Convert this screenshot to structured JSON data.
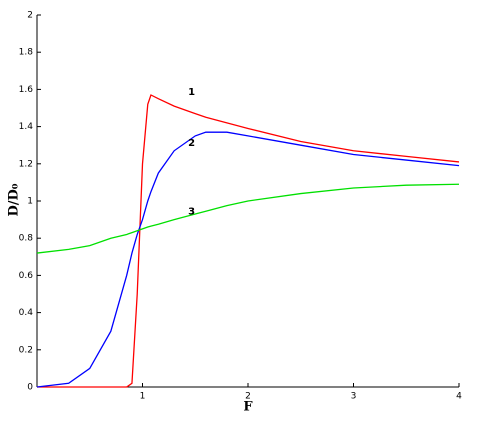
{
  "chart_data": {
    "type": "line",
    "xlabel": "F",
    "ylabel": "D/D₀",
    "x": [
      0,
      0.3,
      0.5,
      0.7,
      0.85,
      0.9,
      0.95,
      1,
      1.05,
      1.08,
      1.15,
      1.3,
      1.5,
      1.6,
      1.8,
      2,
      2.5,
      3,
      3.5,
      4
    ],
    "series": [
      {
        "name": "1",
        "color": "#ff0000",
        "values": [
          0,
          0,
          0,
          0,
          0,
          0.02,
          0.5,
          1.2,
          1.52,
          1.57,
          1.55,
          1.51,
          1.47,
          1.45,
          1.42,
          1.39,
          1.32,
          1.27,
          1.24,
          1.21
        ]
      },
      {
        "name": "2",
        "color": "#0000ff",
        "values": [
          0,
          0.02,
          0.1,
          0.3,
          0.6,
          0.72,
          0.82,
          0.9,
          1.0,
          1.05,
          1.15,
          1.27,
          1.35,
          1.37,
          1.37,
          1.35,
          1.3,
          1.25,
          1.22,
          1.19
        ]
      },
      {
        "name": "3",
        "color": "#00e000",
        "values": [
          0.72,
          0.74,
          0.76,
          0.8,
          0.82,
          0.83,
          0.84,
          0.85,
          0.86,
          0.865,
          0.875,
          0.9,
          0.93,
          0.945,
          0.975,
          1.0,
          1.04,
          1.07,
          1.085,
          1.09
        ]
      }
    ],
    "xlim": [
      0,
      4
    ],
    "ylim": [
      0,
      2
    ],
    "xticks": [
      1,
      2,
      3,
      4
    ],
    "yticks": [
      0,
      0.2,
      0.4,
      0.6,
      0.8,
      1,
      1.2,
      1.4,
      1.6,
      1.8,
      2
    ]
  }
}
